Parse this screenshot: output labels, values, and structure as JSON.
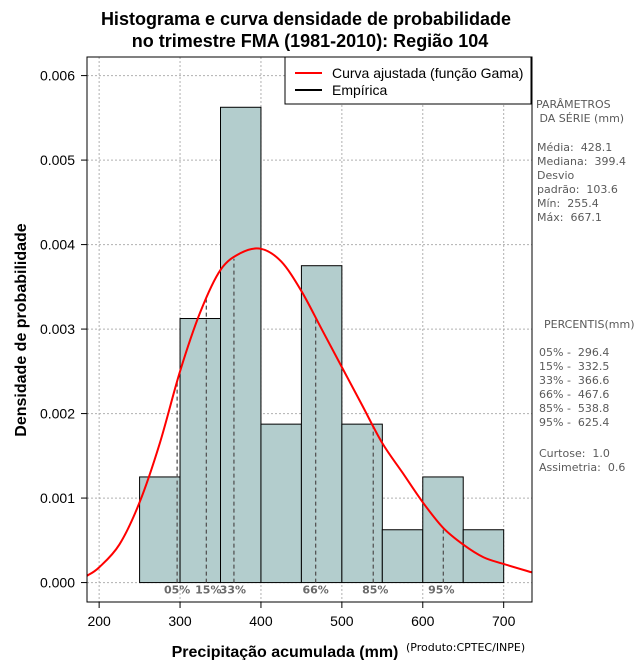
{
  "chart_data": {
    "type": "bar",
    "title_lines": [
      "Histograma e curva densidade de probabilidade",
      "no trimestre FMA (1981-2010): Região 104"
    ],
    "xlabel": "Precipitação acumulada (mm)",
    "ylabel": "Densidade de probabilidade",
    "credit": "(Produto:CPTEC/INPE)",
    "xlim": [
      185,
      735
    ],
    "ylim": [
      -0.00023,
      0.00622
    ],
    "x_ticks": [
      200,
      300,
      400,
      500,
      600,
      700
    ],
    "y_ticks": [
      0.0,
      0.001,
      0.002,
      0.003,
      0.004,
      0.005,
      0.006
    ],
    "y_tick_labels": [
      "0.000",
      "0.001",
      "0.002",
      "0.003",
      "0.004",
      "0.005",
      "0.006"
    ],
    "bins": [
      {
        "from": 250,
        "to": 300,
        "density": 0.00125
      },
      {
        "from": 300,
        "to": 350,
        "density": 0.003125
      },
      {
        "from": 350,
        "to": 400,
        "density": 0.005625
      },
      {
        "from": 400,
        "to": 450,
        "density": 0.001875
      },
      {
        "from": 450,
        "to": 500,
        "density": 0.00375
      },
      {
        "from": 500,
        "to": 550,
        "density": 0.001875
      },
      {
        "from": 550,
        "to": 600,
        "density": 0.000625
      },
      {
        "from": 600,
        "to": 650,
        "density": 0.00125
      },
      {
        "from": 650,
        "to": 700,
        "density": 0.000625
      }
    ],
    "fitted_curve": {
      "name": "Curva ajustada (função Gama)",
      "x": [
        185,
        200,
        225,
        250,
        275,
        300,
        325,
        350,
        375,
        400,
        425,
        450,
        475,
        500,
        525,
        550,
        575,
        600,
        625,
        650,
        675,
        700,
        735
      ],
      "y": [
        8e-05,
        0.00018,
        0.00045,
        0.00095,
        0.00165,
        0.0025,
        0.0032,
        0.0037,
        0.0039,
        0.00395,
        0.0038,
        0.00345,
        0.003,
        0.00255,
        0.0021,
        0.00165,
        0.0013,
        0.00095,
        0.00065,
        0.00045,
        0.0003,
        0.00022,
        0.00012
      ]
    },
    "legend": [
      {
        "label": "Curva ajustada (função Gama)",
        "color": "#ff0000"
      },
      {
        "label": "Empírica",
        "color": "#000000"
      }
    ],
    "percentile_marks": [
      {
        "label": "05%",
        "value": 296.4
      },
      {
        "label": "15%",
        "value": 332.5
      },
      {
        "label": "33%",
        "value": 366.6
      },
      {
        "label": "66%",
        "value": 467.6
      },
      {
        "label": "85%",
        "value": 538.8
      },
      {
        "label": "95%",
        "value": 625.4
      }
    ],
    "colors": {
      "bar_fill": "#b3cdcd",
      "curve": "#ff0000",
      "grid": "#b0b0b0",
      "pct_line": "#555555"
    }
  },
  "side_panel": {
    "params_title_1": "PARÂMETROS",
    "params_title_2": " DA SÉRIE (mm)",
    "params": [
      "Média:  428.1",
      "Mediana:  399.4",
      "Desvio",
      "padrão:  103.6",
      "Mín:  255.4",
      "Máx:  667.1"
    ],
    "percentis_title": "PERCENTIS(mm)",
    "percentis": [
      "05% -  296.4",
      "15% -  332.5",
      "33% -  366.6",
      "66% -  467.6",
      "85% -  538.8",
      "95% -  625.4"
    ],
    "stats": [
      "Curtose:  1.0",
      "Assimetria:  0.6"
    ]
  }
}
